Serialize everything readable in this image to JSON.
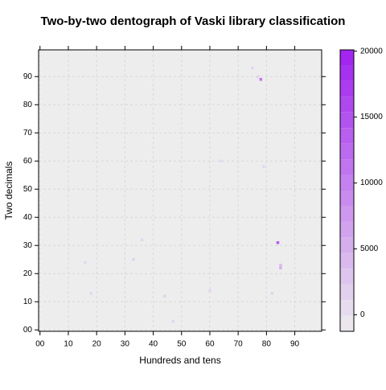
{
  "chart_data": {
    "type": "heatmap",
    "title": "Two-by-two dentograph of Vaski library classification",
    "x_label": "Hundreds and tens",
    "y_label": "Two decimals",
    "x": [
      78,
      84,
      85,
      85,
      77,
      44,
      33,
      18,
      60,
      47,
      82,
      75,
      16,
      64,
      36,
      79
    ],
    "y": [
      89,
      31,
      22,
      23,
      90,
      12,
      25,
      13,
      14,
      3,
      13,
      93,
      24,
      60,
      32,
      58
    ],
    "values": [
      11000,
      14000,
      5000,
      4000,
      1500,
      1500,
      1500,
      1200,
      1200,
      1200,
      1500,
      1200,
      1000,
      1000,
      1200,
      1000
    ],
    "xlim": [
      -0.5,
      99.5
    ],
    "ylim": [
      -0.5,
      99.5
    ],
    "xticks": [
      {
        "value": 0,
        "label": "00"
      },
      10,
      20,
      30,
      40,
      50,
      60,
      70,
      80,
      90
    ],
    "yticks": [
      {
        "value": 0,
        "label": "00"
      },
      10,
      20,
      30,
      40,
      50,
      60,
      70,
      80,
      90
    ],
    "clim": [
      -1250,
      20100
    ],
    "cticks": [
      0,
      5000,
      10000,
      15000,
      20000
    ],
    "color_low": "#ededed",
    "color_high": "#a020f0",
    "grid": true
  }
}
